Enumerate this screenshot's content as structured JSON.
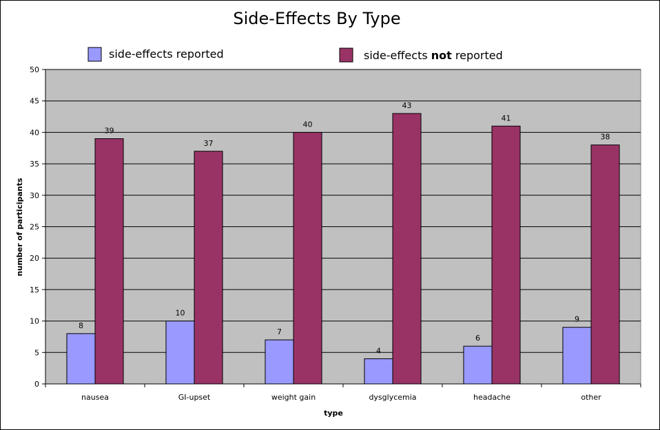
{
  "chart_data": {
    "type": "bar",
    "title": "Side-Effects By Type",
    "xlabel": "type",
    "ylabel": "number of participants",
    "categories": [
      "nausea",
      "GI-upset",
      "weight gain",
      "dysglycemia",
      "headache",
      "other"
    ],
    "series": [
      {
        "name": "side-effects reported",
        "color": "#9999ff",
        "values": [
          8,
          10,
          7,
          4,
          6,
          9
        ]
      },
      {
        "name": "side-effects not reported",
        "name_parts": [
          "side-effects ",
          "not",
          " reported"
        ],
        "color": "#993366",
        "values": [
          39,
          37,
          40,
          43,
          41,
          38
        ]
      }
    ],
    "ylim": [
      0,
      50
    ],
    "yticks": [
      0,
      5,
      10,
      15,
      20,
      25,
      30,
      35,
      40,
      45,
      50
    ],
    "grid": true,
    "plot_background": "#c0c0c0",
    "legend_position": "top"
  }
}
